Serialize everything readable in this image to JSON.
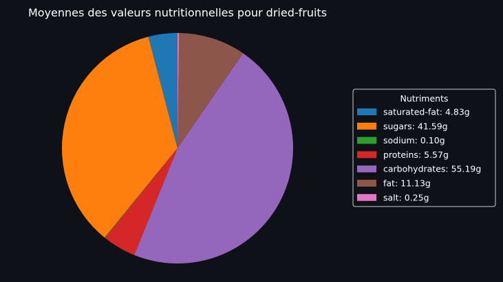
{
  "chart_data": {
    "type": "pie",
    "title": "Moyennes des valeurs nutritionnelles pour dried-fruits",
    "legend_title": "Nutriments",
    "legend_position": "right",
    "start_angle_deg": 90,
    "direction": "counterclockwise",
    "unit": "g",
    "slices": [
      {
        "name": "saturated-fat",
        "value": 4.83,
        "label": "saturated-fat: 4.83g",
        "color": "#1f77b4"
      },
      {
        "name": "sugars",
        "value": 41.59,
        "label": "sugars: 41.59g",
        "color": "#ff7f0e"
      },
      {
        "name": "sodium",
        "value": 0.1,
        "label": "sodium: 0.10g",
        "color": "#2ca02c"
      },
      {
        "name": "proteins",
        "value": 5.57,
        "label": "proteins: 5.57g",
        "color": "#d62728"
      },
      {
        "name": "carbohydrates",
        "value": 55.19,
        "label": "carbohydrates: 55.19g",
        "color": "#9467bd"
      },
      {
        "name": "fat",
        "value": 11.13,
        "label": "fat: 11.13g",
        "color": "#8c564b"
      },
      {
        "name": "salt",
        "value": 0.25,
        "label": "salt: 0.25g",
        "color": "#e377c2"
      }
    ]
  },
  "theme": {
    "background": "#0e1117",
    "text_color": "#ffffff",
    "legend_border": "#cccccc"
  }
}
